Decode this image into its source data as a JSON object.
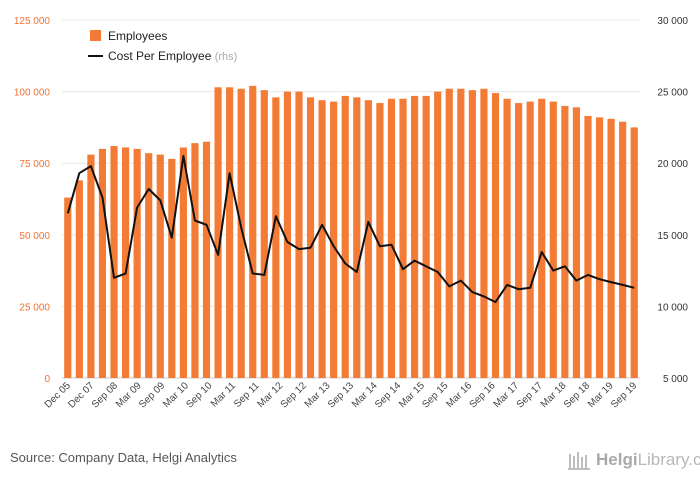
{
  "chart_data": {
    "type": "bar",
    "legend": {
      "position": "top-left",
      "entries": [
        {
          "label": "Employees",
          "marker": "square"
        },
        {
          "label": "Cost Per Employee",
          "suffix": "(rhs)",
          "marker": "line"
        }
      ]
    },
    "x_tick_labels": [
      "Dec 05",
      "Dec 07",
      "Sep 08",
      "Mar 09",
      "Sep 09",
      "Mar 10",
      "Sep 10",
      "Mar 11",
      "Sep 11",
      "Mar 12",
      "Sep 12",
      "Mar 13",
      "Sep 13",
      "Mar 14",
      "Sep 14",
      "Mar 15",
      "Sep 15",
      "Mar 16",
      "Sep 16",
      "Mar 17",
      "Sep 17",
      "Mar 18",
      "Sep 18",
      "Mar 19",
      "Sep 19"
    ],
    "y_left": {
      "min": 0,
      "max": 125000,
      "ticks": [
        "0",
        "25 000",
        "50 000",
        "75 000",
        "100 000",
        "125 000"
      ],
      "color": "#f07030"
    },
    "y_right": {
      "min": 5000,
      "max": 30000,
      "ticks": [
        "5 000",
        "10 000",
        "15 000",
        "20 000",
        "25 000",
        "30 000"
      ],
      "color": "#333333"
    },
    "grid": "horizontal",
    "series": [
      {
        "name": "Employees",
        "type": "bar",
        "axis": "left",
        "color": "#f47b36",
        "values": [
          63000,
          69000,
          78000,
          80000,
          81000,
          80500,
          80000,
          78500,
          78000,
          76500,
          80500,
          82000,
          82500,
          101500,
          101500,
          101000,
          102000,
          100500,
          98000,
          100000,
          100000,
          98000,
          97000,
          96500,
          98500,
          98000,
          97000,
          96000,
          97500,
          97500,
          98500,
          98500,
          100000,
          101000,
          101000,
          100500,
          101000,
          99500,
          97500,
          96000,
          96500,
          97500,
          96500,
          95000,
          94500,
          91500,
          91000,
          90500,
          89500,
          87500
        ]
      },
      {
        "name": "Cost Per Employee",
        "type": "line",
        "axis": "right",
        "color": "#111111",
        "values": [
          16500,
          19300,
          19800,
          17600,
          12000,
          12300,
          16900,
          18200,
          17400,
          14800,
          20500,
          16000,
          15700,
          13600,
          19300,
          15500,
          12300,
          12200,
          16300,
          14500,
          14000,
          14100,
          15700,
          14200,
          13000,
          12400,
          15900,
          14200,
          14300,
          12600,
          13200,
          12800,
          12400,
          11400,
          11800,
          11000,
          10700,
          10300,
          11500,
          11200,
          11300,
          13800,
          12500,
          12800,
          11800,
          12200,
          11900,
          11700,
          11500,
          11300
        ]
      }
    ]
  },
  "footer": {
    "source": "Source: Company Data, Helgi Analytics",
    "logo_text_bold": "Helgi",
    "logo_text_rest": "Library.com"
  }
}
